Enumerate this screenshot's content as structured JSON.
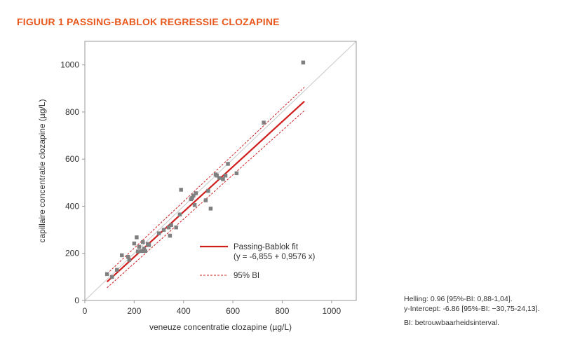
{
  "figure": {
    "title": "FIGUUR 1  PASSING-BABLOK REGRESSIE CLOZAPINE"
  },
  "notes": {
    "slope": "Helling: 0.96 [95%-BI: 0,88-1,04].",
    "intercept": "y-Intercept: -6.86 [95%-BI: −30,75-24,13].",
    "abbreviation": "BI: betrouwbaarheidsinterval."
  },
  "chart_data": {
    "type": "scatter",
    "xlabel": "veneuze concentratie clozapine (µg/L)",
    "ylabel": "capillaire concentratie clozapine (µg/L)",
    "xlim": [
      0,
      1100
    ],
    "ylim": [
      0,
      1100
    ],
    "xticks": [
      0,
      200,
      400,
      600,
      800,
      1000
    ],
    "yticks": [
      0,
      200,
      400,
      600,
      800,
      1000
    ],
    "grid": false,
    "legend_position": "lower-right",
    "colors": {
      "points": "#808080",
      "fit": "#d01e1e",
      "ci": "#d01e1e",
      "identity": "#c8c8c8",
      "frame": "#999999"
    },
    "points": [
      {
        "x": 90,
        "y": 112
      },
      {
        "x": 110,
        "y": 100
      },
      {
        "x": 130,
        "y": 130
      },
      {
        "x": 150,
        "y": 192
      },
      {
        "x": 175,
        "y": 185
      },
      {
        "x": 180,
        "y": 172
      },
      {
        "x": 200,
        "y": 242
      },
      {
        "x": 210,
        "y": 268
      },
      {
        "x": 215,
        "y": 208
      },
      {
        "x": 220,
        "y": 228
      },
      {
        "x": 230,
        "y": 210
      },
      {
        "x": 235,
        "y": 248
      },
      {
        "x": 240,
        "y": 220
      },
      {
        "x": 245,
        "y": 210
      },
      {
        "x": 255,
        "y": 240
      },
      {
        "x": 260,
        "y": 235
      },
      {
        "x": 300,
        "y": 285
      },
      {
        "x": 320,
        "y": 300
      },
      {
        "x": 340,
        "y": 310
      },
      {
        "x": 345,
        "y": 275
      },
      {
        "x": 350,
        "y": 320
      },
      {
        "x": 370,
        "y": 310
      },
      {
        "x": 385,
        "y": 365
      },
      {
        "x": 390,
        "y": 470
      },
      {
        "x": 430,
        "y": 430
      },
      {
        "x": 435,
        "y": 435
      },
      {
        "x": 440,
        "y": 445
      },
      {
        "x": 445,
        "y": 405
      },
      {
        "x": 450,
        "y": 455
      },
      {
        "x": 490,
        "y": 425
      },
      {
        "x": 500,
        "y": 465
      },
      {
        "x": 510,
        "y": 390
      },
      {
        "x": 530,
        "y": 535
      },
      {
        "x": 535,
        "y": 530
      },
      {
        "x": 545,
        "y": 520
      },
      {
        "x": 560,
        "y": 515
      },
      {
        "x": 570,
        "y": 530
      },
      {
        "x": 580,
        "y": 580
      },
      {
        "x": 615,
        "y": 540
      },
      {
        "x": 725,
        "y": 755
      },
      {
        "x": 885,
        "y": 1010
      }
    ],
    "fit_line": {
      "intercept": -6.855,
      "slope": 0.9576,
      "x_range": [
        90,
        890
      ]
    },
    "ci_upper": {
      "intercept": 24.13,
      "slope": 0.99,
      "x_range": [
        90,
        890
      ]
    },
    "ci_lower": {
      "intercept": -30.75,
      "slope": 0.94,
      "x_range": [
        90,
        890
      ]
    },
    "identity_line": {
      "x_range": [
        0,
        1100
      ]
    },
    "legend": [
      {
        "key": "fit",
        "label": "Passing-Bablok fit",
        "sublabel": "(y = -6,855 + 0,9576 x)"
      },
      {
        "key": "ci",
        "label": "95% BI"
      }
    ]
  }
}
